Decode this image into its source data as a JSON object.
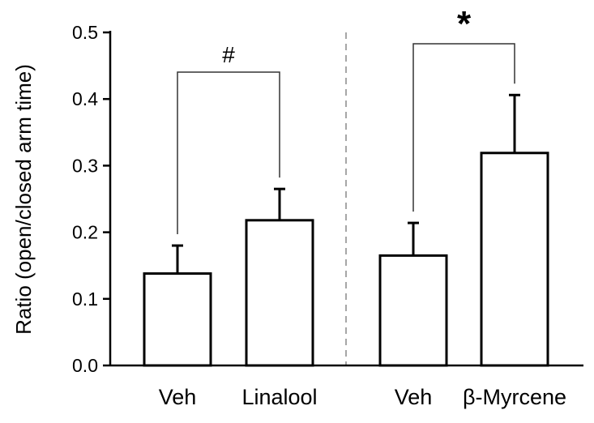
{
  "chart_data": {
    "type": "bar",
    "title": "",
    "xlabel": "",
    "ylabel": "Ratio (open/closed arm time)",
    "ylim": [
      0,
      0.5
    ],
    "yticks": [
      "0.0",
      "0.1",
      "0.2",
      "0.3",
      "0.4",
      "0.5"
    ],
    "grid": false,
    "categories": [
      "Veh",
      "Linalool",
      "Veh",
      "β-Myrcene"
    ],
    "values": [
      0.138,
      0.218,
      0.165,
      0.319
    ],
    "errors": [
      0.042,
      0.047,
      0.049,
      0.087
    ],
    "groups": [
      {
        "bars": [
          0,
          1
        ],
        "significance": "#"
      },
      {
        "bars": [
          2,
          3
        ],
        "significance": "*"
      }
    ],
    "group_divider": true,
    "colors": {
      "bar_fill": "#ffffff",
      "bar_edge": "#000000",
      "divider": "#888888"
    }
  }
}
